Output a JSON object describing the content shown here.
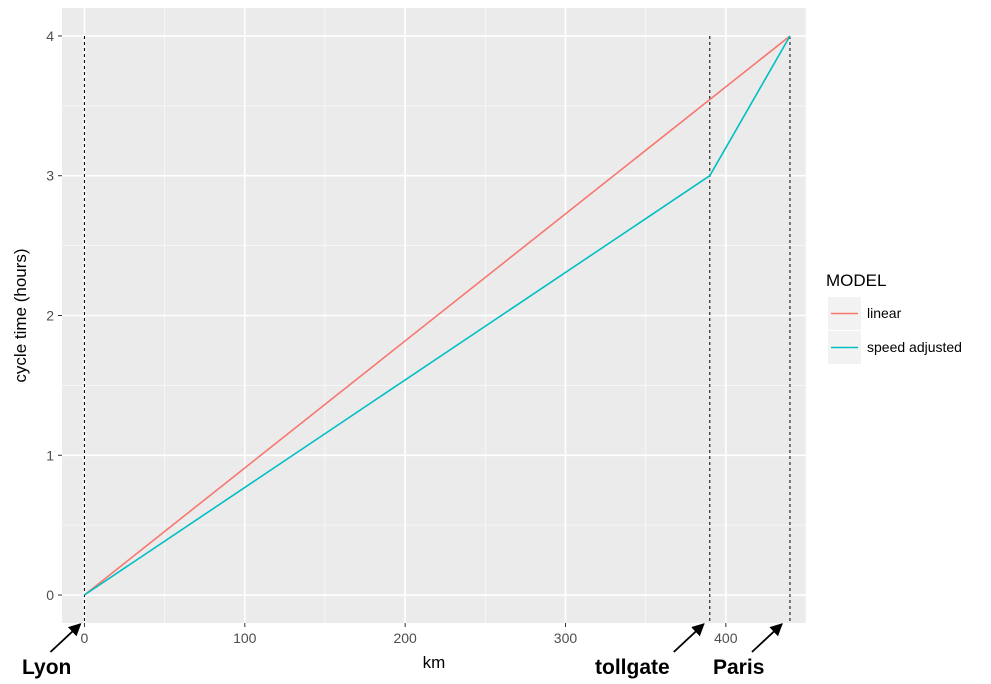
{
  "chart_data": {
    "type": "line",
    "xlabel": "km",
    "ylabel": "cycle time (hours)",
    "xlim": [
      -14,
      450
    ],
    "ylim": [
      -0.2,
      4.2
    ],
    "x_ticks": [
      0,
      100,
      200,
      300,
      400
    ],
    "y_ticks": [
      0,
      1,
      2,
      3,
      4
    ],
    "grid": true,
    "legend": {
      "title": "MODEL",
      "position": "right",
      "entries": [
        "linear",
        "speed adjusted"
      ]
    },
    "series": [
      {
        "name": "linear",
        "color": "#F8766D",
        "points": [
          [
            0,
            0
          ],
          [
            440,
            4
          ]
        ]
      },
      {
        "name": "speed adjusted",
        "color": "#00BFC4",
        "points": [
          [
            0,
            0
          ],
          [
            390,
            3
          ],
          [
            440,
            4
          ]
        ]
      }
    ],
    "vlines": [
      0,
      390,
      440
    ],
    "annotations": [
      {
        "label": "Lyon",
        "x": 0
      },
      {
        "label": "tollgate",
        "x": 390
      },
      {
        "label": "Paris",
        "x": 440
      }
    ]
  }
}
